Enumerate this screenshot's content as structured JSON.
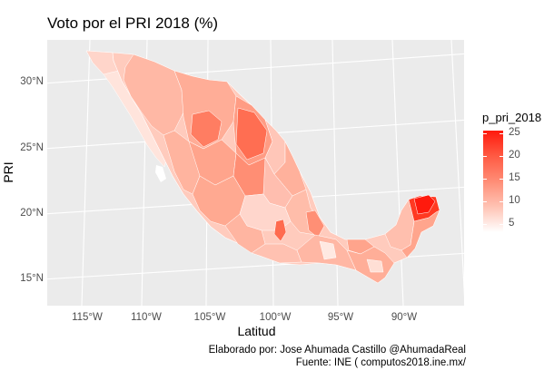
{
  "title": "Voto por el PRI 2018 (%)",
  "axes": {
    "xlabel": "Latitud",
    "ylabel": "PRI",
    "y_ticks": [
      "30°N",
      "25°N",
      "20°N",
      "15°N"
    ],
    "x_ticks": [
      "115°W",
      "110°W",
      "105°W",
      "100°W",
      "95°W",
      "90°W"
    ]
  },
  "legend": {
    "title": "p_pri_2018",
    "ticks": [
      "25",
      "20",
      "15",
      "10",
      "5"
    ],
    "colors": {
      "low": "#ffffff",
      "high": "#ff1a0d"
    }
  },
  "caption": {
    "line1": "Elaborado por: Jose Ahumada Castillo @AhumadaReal",
    "line2": "Fuente: INE ( computos2018.ine.mx/"
  },
  "chart_data": {
    "type": "choropleth",
    "fill_variable": "p_pri_2018",
    "fill_range": [
      0,
      27
    ],
    "x_range_lon": [
      -118,
      -86
    ],
    "y_range_lat": [
      13,
      33
    ],
    "grid": true
  }
}
